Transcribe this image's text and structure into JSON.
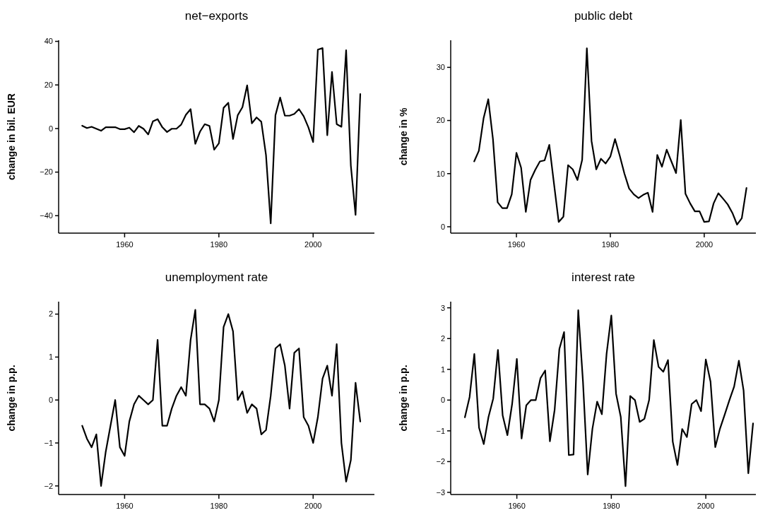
{
  "chart_data": [
    {
      "type": "line",
      "title": "net−exports",
      "ylabel": "change in bil. EUR",
      "x": [
        1951,
        1952,
        1953,
        1954,
        1955,
        1956,
        1957,
        1958,
        1959,
        1960,
        1961,
        1962,
        1963,
        1964,
        1965,
        1966,
        1967,
        1968,
        1969,
        1970,
        1971,
        1972,
        1973,
        1974,
        1975,
        1976,
        1977,
        1978,
        1979,
        1980,
        1981,
        1982,
        1983,
        1984,
        1985,
        1986,
        1987,
        1988,
        1989,
        1990,
        1991,
        1992,
        1993,
        1994,
        1995,
        1996,
        1997,
        1998,
        1999,
        2000,
        2001,
        2002,
        2003,
        2004,
        2005,
        2006,
        2007,
        2008,
        2009,
        2010
      ],
      "xlim": [
        1946,
        2013
      ],
      "ylim": [
        -48,
        40.5
      ],
      "xticks": [
        1960,
        1980,
        2000
      ],
      "yticks": [
        {
          "value": -40,
          "label": "−40"
        },
        {
          "value": -20,
          "label": "−20"
        },
        0,
        20,
        40
      ],
      "series": [
        {
          "color": "#000000",
          "values": [
            1.3,
            0.2,
            0.8,
            -0.1,
            -1,
            0.6,
            0.6,
            0.6,
            -0.3,
            -0.3,
            0.4,
            -1.7,
            1.2,
            -0.1,
            -2.7,
            3.3,
            4.3,
            0.6,
            -1.6,
            -0.1,
            -0.1,
            1.8,
            6.3,
            8.9,
            -7,
            -1.4,
            2,
            1.2,
            -9.7,
            -6.8,
            9.5,
            11.8,
            -4.8,
            6.1,
            9.8,
            19.8,
            2.4,
            5.1,
            3.1,
            -12.2,
            -43.5,
            6.1,
            14.2,
            5.9,
            5.9,
            6.7,
            8.9,
            5.6,
            0.5,
            -6.2,
            36.2,
            36.9,
            -3.1,
            26,
            2,
            0.8,
            35.9,
            -17,
            -39.6,
            15.8
          ]
        }
      ]
    },
    {
      "type": "line",
      "title": "public debt",
      "ylabel": "change in %",
      "x": [
        1951,
        1952,
        1953,
        1954,
        1955,
        1956,
        1957,
        1958,
        1959,
        1960,
        1961,
        1962,
        1963,
        1964,
        1965,
        1966,
        1967,
        1968,
        1969,
        1970,
        1971,
        1972,
        1973,
        1974,
        1975,
        1976,
        1977,
        1978,
        1979,
        1980,
        1981,
        1982,
        1983,
        1984,
        1985,
        1986,
        1987,
        1988,
        1989,
        1990,
        1991,
        1992,
        1993,
        1994,
        1995,
        1996,
        1997,
        1998,
        1999,
        2000,
        2001,
        2002,
        2003,
        2004,
        2005,
        2006,
        2007,
        2008,
        2009
      ],
      "xlim": [
        1946,
        2011
      ],
      "ylim": [
        -1.2,
        35.1
      ],
      "xticks": [
        1960,
        1980,
        2000
      ],
      "yticks": [
        0,
        10,
        20,
        30
      ],
      "series": [
        {
          "color": "#000000",
          "values": [
            12.3,
            14.3,
            20.4,
            24,
            16.5,
            4.6,
            3.5,
            3.5,
            6.1,
            13.9,
            11.1,
            2.8,
            8.8,
            10.7,
            12.3,
            12.5,
            15.4,
            8.1,
            0.9,
            1.9,
            11.6,
            10.8,
            8.8,
            12.6,
            33.6,
            16.1,
            10.8,
            12.8,
            11.9,
            13.2,
            16.5,
            13.4,
            10,
            7.2,
            6.1,
            5.4,
            6,
            6.4,
            2.8,
            13.5,
            11.3,
            14.5,
            12.3,
            10.1,
            20.1,
            6.2,
            4.4,
            2.9,
            2.9,
            0.9,
            1,
            4.4,
            6.3,
            5.3,
            4.2,
            2.6,
            0.4,
            1.6,
            7.3
          ]
        }
      ]
    },
    {
      "type": "line",
      "title": "unemployment rate",
      "ylabel": "change in p.p.",
      "x": [
        1951,
        1952,
        1953,
        1954,
        1955,
        1956,
        1957,
        1958,
        1959,
        1960,
        1961,
        1962,
        1963,
        1964,
        1965,
        1966,
        1967,
        1968,
        1969,
        1970,
        1971,
        1972,
        1973,
        1974,
        1975,
        1976,
        1977,
        1978,
        1979,
        1980,
        1981,
        1982,
        1983,
        1984,
        1985,
        1986,
        1987,
        1988,
        1989,
        1990,
        1991,
        1992,
        1993,
        1994,
        1995,
        1996,
        1997,
        1998,
        1999,
        2000,
        2001,
        2002,
        2003,
        2004,
        2005,
        2006,
        2007,
        2008,
        2009,
        2010
      ],
      "xlim": [
        1946,
        2013
      ],
      "ylim": [
        -2.2,
        2.29
      ],
      "xticks": [
        1960,
        1980,
        2000
      ],
      "yticks": [
        {
          "value": -2,
          "label": "−2"
        },
        {
          "value": -1,
          "label": "−1"
        },
        0,
        1,
        2
      ],
      "series": [
        {
          "color": "#000000",
          "values": [
            -0.6,
            -0.9,
            -1.1,
            -0.8,
            -2,
            -1.2,
            -0.6,
            0,
            -1.1,
            -1.3,
            -0.5,
            -0.1,
            0.1,
            0,
            -0.1,
            0,
            1.4,
            -0.6,
            -0.6,
            -0.2,
            0.1,
            0.3,
            0.1,
            1.4,
            2.1,
            -0.1,
            -0.1,
            -0.2,
            -0.5,
            0,
            1.7,
            2,
            1.6,
            0,
            0.2,
            -0.3,
            -0.1,
            -0.2,
            -0.8,
            -0.7,
            0.1,
            1.2,
            1.3,
            0.8,
            -0.2,
            1.1,
            1.2,
            -0.4,
            -0.6,
            -1,
            -0.4,
            0.5,
            0.8,
            0.1,
            1.3,
            -1,
            -1.9,
            -1.4,
            0.4,
            -0.5
          ]
        }
      ]
    },
    {
      "type": "line",
      "title": "interest rate",
      "ylabel": "change in p.p.",
      "x": [
        1949,
        1950,
        1951,
        1952,
        1953,
        1954,
        1955,
        1956,
        1957,
        1958,
        1959,
        1960,
        1961,
        1962,
        1963,
        1964,
        1965,
        1966,
        1967,
        1968,
        1969,
        1970,
        1971,
        1972,
        1973,
        1974,
        1975,
        1976,
        1977,
        1978,
        1979,
        1980,
        1981,
        1982,
        1983,
        1984,
        1985,
        1986,
        1987,
        1988,
        1989,
        1990,
        1991,
        1992,
        1993,
        1994,
        1995,
        1996,
        1997,
        1998,
        1999,
        2000,
        2001,
        2002,
        2003,
        2004,
        2005,
        2006,
        2007,
        2008,
        2009,
        2010
      ],
      "xlim": [
        1946,
        2010.6
      ],
      "ylim": [
        -3.07,
        3.2
      ],
      "xticks": [
        1960,
        1980,
        2000
      ],
      "yticks": [
        {
          "value": -3,
          "label": "−3"
        },
        {
          "value": -2,
          "label": "−2"
        },
        {
          "value": -1,
          "label": "−1"
        },
        0,
        1,
        2,
        3
      ],
      "series": [
        {
          "color": "#000000",
          "values": [
            -0.56,
            0.1,
            1.5,
            -0.9,
            -1.43,
            -0.55,
            0.05,
            1.63,
            -0.5,
            -1.14,
            -0.13,
            1.34,
            -1.25,
            -0.17,
            0,
            0,
            0.71,
            0.96,
            -1.34,
            -0.32,
            1.66,
            2.21,
            -1.79,
            -1.77,
            2.92,
            0.6,
            -2.42,
            -0.93,
            -0.05,
            -0.46,
            1.51,
            2.75,
            0.21,
            -0.55,
            -2.8,
            0.13,
            0,
            -0.71,
            -0.61,
            0,
            1.95,
            1.08,
            0.92,
            1.3,
            -1.35,
            -2.11,
            -0.94,
            -1.2,
            -0.13,
            0,
            -0.36,
            1.32,
            0.6,
            -1.53,
            -0.93,
            -0.47,
            0,
            0.44,
            1.28,
            0.31,
            -2.38,
            -0.76
          ]
        }
      ]
    }
  ]
}
